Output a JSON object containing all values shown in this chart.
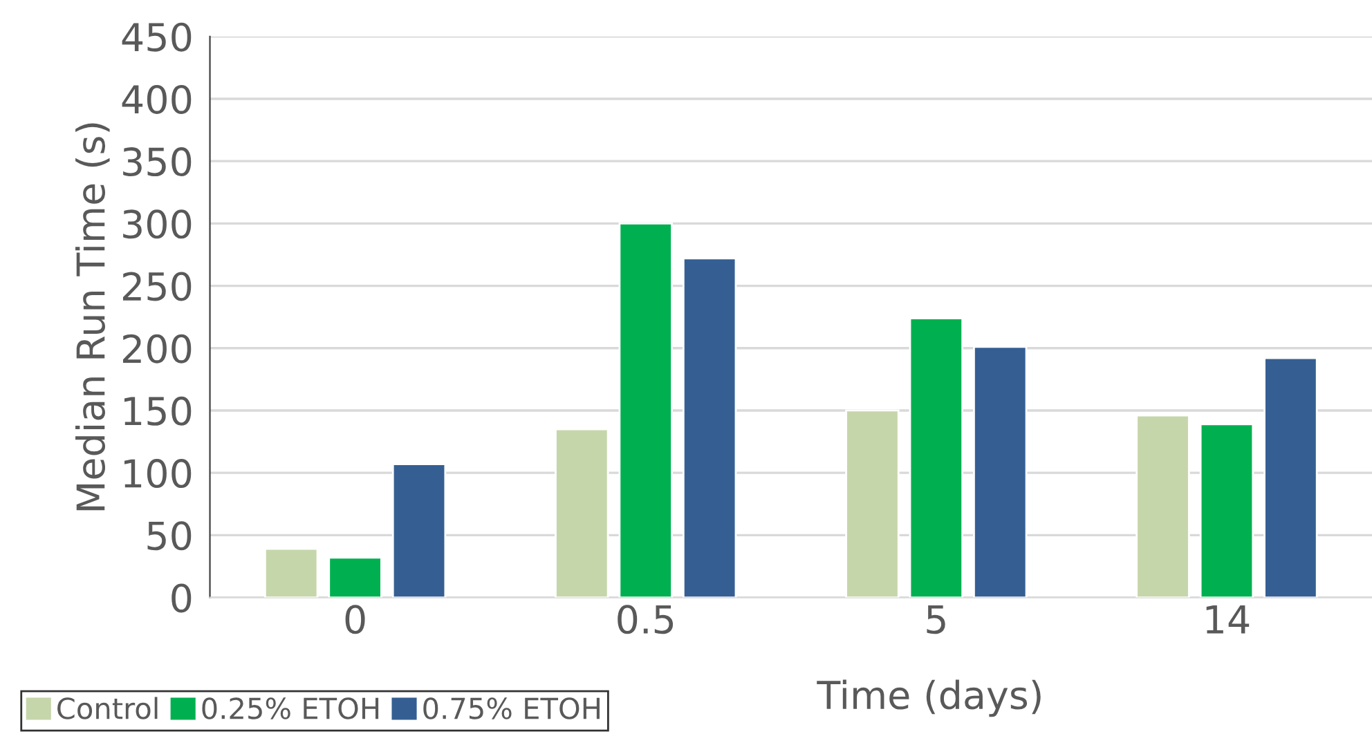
{
  "chart_data": {
    "type": "bar",
    "xlabel": "Time (days)",
    "ylabel": "Median Run Time (s)",
    "categories": [
      "0",
      "0.5",
      "5",
      "14"
    ],
    "series": [
      {
        "name": "Control",
        "color": "#c6d6ab",
        "values": [
          39,
          135,
          150,
          146
        ]
      },
      {
        "name": "0.25% ETOH",
        "color": "#00b050",
        "values": [
          32,
          300,
          224,
          139
        ]
      },
      {
        "name": "0.75% ETOH",
        "color": "#355f93",
        "values": [
          107,
          272,
          201,
          192
        ]
      }
    ],
    "ylim": [
      0,
      450
    ],
    "yticks": [
      0,
      50,
      100,
      150,
      200,
      250,
      300,
      350,
      400,
      450
    ],
    "grid": "y",
    "legend": "bottom left"
  }
}
